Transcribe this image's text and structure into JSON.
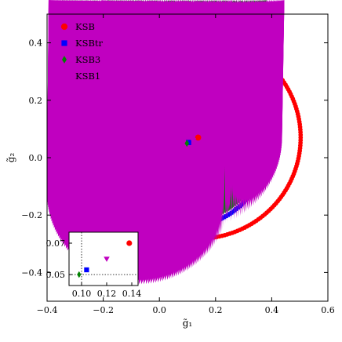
{
  "chart_data": {
    "type": "scatter",
    "xlabel": "g̃₁",
    "ylabel": "g̃₂",
    "xlim": [
      -0.4,
      0.6
    ],
    "ylim": [
      -0.5,
      0.5
    ],
    "xticks": [
      -0.4,
      -0.2,
      0.0,
      0.2,
      0.4,
      0.6
    ],
    "xtick_labels": [
      "−0.4",
      "−0.2",
      "0.0",
      "0.2",
      "0.4",
      "0.6"
    ],
    "yticks": [
      -0.4,
      -0.2,
      0.0,
      0.2,
      0.4
    ],
    "ytick_labels": [
      "−0.4",
      "−0.2",
      "0.0",
      "0.2",
      "0.4"
    ],
    "grid": false,
    "legend_position": "top-left",
    "series": [
      {
        "name": "KSB",
        "color": "#ff0000",
        "marker": "circle",
        "center": [
          0.138,
          0.07
        ],
        "radius_x": 0.365,
        "radius_y": 0.352
      },
      {
        "name": "KSBtr",
        "color": "#0000ff",
        "marker": "square",
        "center": [
          0.104,
          0.053
        ],
        "radius_x": 0.28,
        "radius_y": 0.292
      },
      {
        "name": "KSB3",
        "color": "#008000",
        "marker": "diamond",
        "center": [
          0.098,
          0.05
        ],
        "radius_x": 0.283,
        "radius_y": 0.283
      },
      {
        "name": "KSB1",
        "color": "#c000c0",
        "marker": "triangle-down",
        "center": [
          0.12,
          0.06
        ],
        "radius_x": 0.325,
        "radius_y": 0.32
      }
    ],
    "inset": {
      "xlim": [
        0.09,
        0.145
      ],
      "ylim": [
        0.043,
        0.077
      ],
      "xticks": [
        0.1,
        0.12,
        0.14
      ],
      "xtick_labels": [
        "0.10",
        "0.12",
        "0.14"
      ],
      "yticks": [
        0.05,
        0.07
      ],
      "ytick_labels": [
        "0.05",
        "0.07"
      ],
      "dotted_x": 0.1,
      "dotted_y": 0.05
    }
  }
}
